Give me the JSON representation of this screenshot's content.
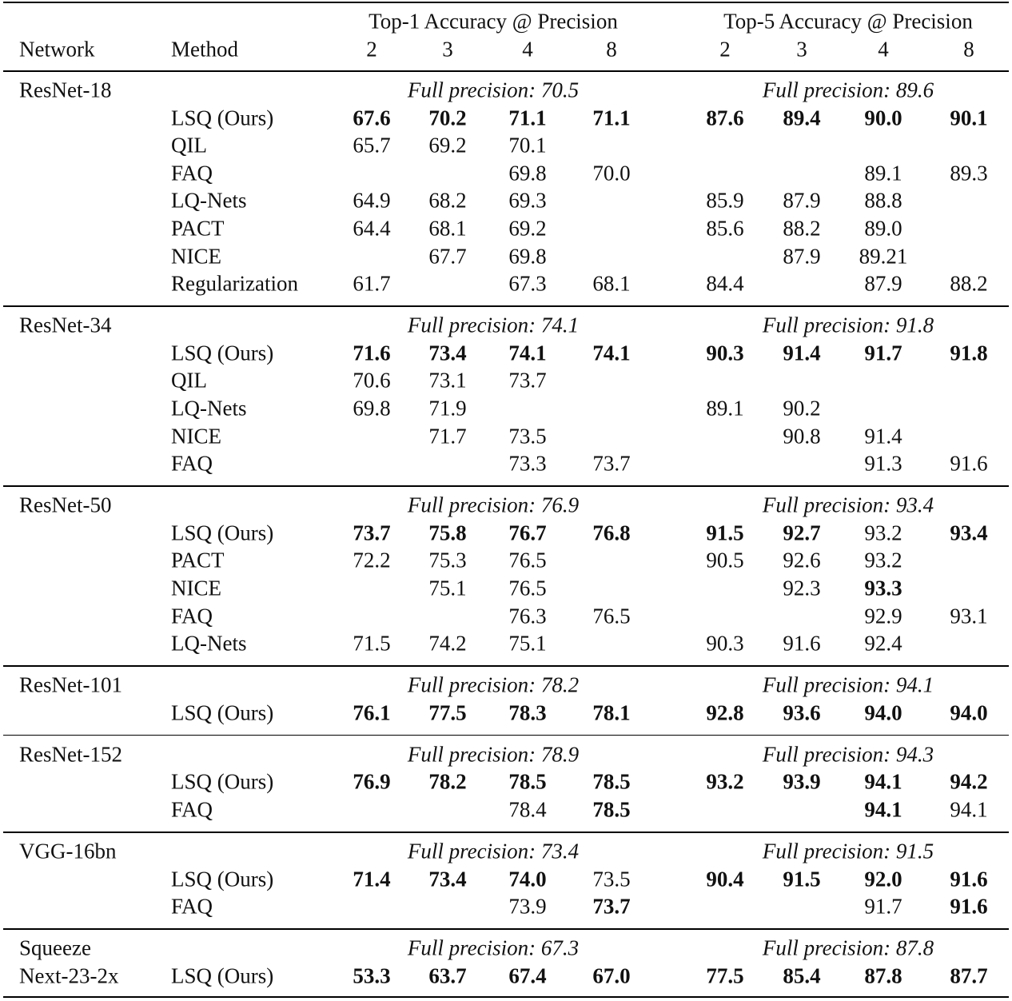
{
  "header": {
    "network": "Network",
    "method": "Method",
    "top1": "Top-1 Accuracy @ Precision",
    "top5": "Top-5 Accuracy @ Precision",
    "bits": [
      "2",
      "3",
      "4",
      "8",
      "2",
      "3",
      "4",
      "8"
    ]
  },
  "groups": [
    {
      "network": [
        "ResNet-18"
      ],
      "full_top1": "Full precision: 70.5",
      "full_top5": "Full precision: 89.6",
      "rows": [
        {
          "method": "LSQ (Ours)",
          "values": [
            "67.6",
            "70.2",
            "71.1",
            "71.1",
            "87.6",
            "89.4",
            "90.0",
            "90.1"
          ],
          "bold": [
            true,
            true,
            true,
            true,
            true,
            true,
            true,
            true
          ]
        },
        {
          "method": "QIL",
          "values": [
            "65.7",
            "69.2",
            "70.1",
            null,
            null,
            null,
            null,
            null
          ],
          "bold": [
            false,
            false,
            false,
            false,
            false,
            false,
            false,
            false
          ]
        },
        {
          "method": "FAQ",
          "values": [
            null,
            null,
            "69.8",
            "70.0",
            null,
            null,
            "89.1",
            "89.3"
          ],
          "bold": [
            false,
            false,
            false,
            false,
            false,
            false,
            false,
            false
          ]
        },
        {
          "method": "LQ-Nets",
          "values": [
            "64.9",
            "68.2",
            "69.3",
            null,
            "85.9",
            "87.9",
            "88.8",
            null
          ],
          "bold": [
            false,
            false,
            false,
            false,
            false,
            false,
            false,
            false
          ]
        },
        {
          "method": "PACT",
          "values": [
            "64.4",
            "68.1",
            "69.2",
            null,
            "85.6",
            "88.2",
            "89.0",
            null
          ],
          "bold": [
            false,
            false,
            false,
            false,
            false,
            false,
            false,
            false
          ]
        },
        {
          "method": "NICE",
          "values": [
            null,
            "67.7",
            "69.8",
            null,
            null,
            "87.9",
            "89.21",
            null
          ],
          "bold": [
            false,
            false,
            false,
            false,
            false,
            false,
            false,
            false
          ]
        },
        {
          "method": "Regularization",
          "values": [
            "61.7",
            null,
            "67.3",
            "68.1",
            "84.4",
            null,
            "87.9",
            "88.2"
          ],
          "bold": [
            false,
            false,
            false,
            false,
            false,
            false,
            false,
            false
          ]
        }
      ]
    },
    {
      "network": [
        "ResNet-34"
      ],
      "full_top1": "Full precision: 74.1",
      "full_top5": "Full precision: 91.8",
      "rows": [
        {
          "method": "LSQ (Ours)",
          "values": [
            "71.6",
            "73.4",
            "74.1",
            "74.1",
            "90.3",
            "91.4",
            "91.7",
            "91.8"
          ],
          "bold": [
            true,
            true,
            true,
            true,
            true,
            true,
            true,
            true
          ]
        },
        {
          "method": "QIL",
          "values": [
            "70.6",
            "73.1",
            "73.7",
            null,
            null,
            null,
            null,
            null
          ],
          "bold": [
            false,
            false,
            false,
            false,
            false,
            false,
            false,
            false
          ]
        },
        {
          "method": "LQ-Nets",
          "values": [
            "69.8",
            "71.9",
            null,
            null,
            "89.1",
            "90.2",
            null,
            null
          ],
          "bold": [
            false,
            false,
            false,
            false,
            false,
            false,
            false,
            false
          ]
        },
        {
          "method": "NICE",
          "values": [
            null,
            "71.7",
            "73.5",
            null,
            null,
            "90.8",
            "91.4",
            null
          ],
          "bold": [
            false,
            false,
            false,
            false,
            false,
            false,
            false,
            false
          ]
        },
        {
          "method": "FAQ",
          "values": [
            null,
            null,
            "73.3",
            "73.7",
            null,
            null,
            "91.3",
            "91.6"
          ],
          "bold": [
            false,
            false,
            false,
            false,
            false,
            false,
            false,
            false
          ]
        }
      ]
    },
    {
      "network": [
        "ResNet-50"
      ],
      "full_top1": "Full precision: 76.9",
      "full_top5": "Full precision: 93.4",
      "rows": [
        {
          "method": "LSQ (Ours)",
          "values": [
            "73.7",
            "75.8",
            "76.7",
            "76.8",
            "91.5",
            "92.7",
            "93.2",
            "93.4"
          ],
          "bold": [
            true,
            true,
            true,
            true,
            true,
            true,
            false,
            true
          ]
        },
        {
          "method": "PACT",
          "values": [
            "72.2",
            "75.3",
            "76.5",
            null,
            "90.5",
            "92.6",
            "93.2",
            null
          ],
          "bold": [
            false,
            false,
            false,
            false,
            false,
            false,
            false,
            false
          ]
        },
        {
          "method": "NICE",
          "values": [
            null,
            "75.1",
            "76.5",
            null,
            null,
            "92.3",
            "93.3",
            null
          ],
          "bold": [
            false,
            false,
            false,
            false,
            false,
            false,
            true,
            false
          ]
        },
        {
          "method": "FAQ",
          "values": [
            null,
            null,
            "76.3",
            "76.5",
            null,
            null,
            "92.9",
            "93.1"
          ],
          "bold": [
            false,
            false,
            false,
            false,
            false,
            false,
            false,
            false
          ]
        },
        {
          "method": "LQ-Nets",
          "values": [
            "71.5",
            "74.2",
            "75.1",
            null,
            "90.3",
            "91.6",
            "92.4",
            null
          ],
          "bold": [
            false,
            false,
            false,
            false,
            false,
            false,
            false,
            false
          ]
        }
      ]
    },
    {
      "network": [
        "ResNet-101"
      ],
      "full_top1": "Full precision: 78.2",
      "full_top5": "Full precision: 94.1",
      "rows": [
        {
          "method": "LSQ (Ours)",
          "values": [
            "76.1",
            "77.5",
            "78.3",
            "78.1",
            "92.8",
            "93.6",
            "94.0",
            "94.0"
          ],
          "bold": [
            true,
            true,
            true,
            true,
            true,
            true,
            true,
            true
          ]
        }
      ]
    },
    {
      "network": [
        "ResNet-152"
      ],
      "full_top1": "Full precision: 78.9",
      "full_top5": "Full precision: 94.3",
      "rows": [
        {
          "method": "LSQ (Ours)",
          "values": [
            "76.9",
            "78.2",
            "78.5",
            "78.5",
            "93.2",
            "93.9",
            "94.1",
            "94.2"
          ],
          "bold": [
            true,
            true,
            true,
            true,
            true,
            true,
            true,
            true
          ]
        },
        {
          "method": "FAQ",
          "values": [
            null,
            null,
            "78.4",
            "78.5",
            null,
            null,
            "94.1",
            "94.1"
          ],
          "bold": [
            false,
            false,
            false,
            true,
            false,
            false,
            true,
            false
          ]
        }
      ]
    },
    {
      "network": [
        "VGG-16bn"
      ],
      "full_top1": "Full precision: 73.4",
      "full_top5": "Full precision: 91.5",
      "rows": [
        {
          "method": "LSQ (Ours)",
          "values": [
            "71.4",
            "73.4",
            "74.0",
            "73.5",
            "90.4",
            "91.5",
            "92.0",
            "91.6"
          ],
          "bold": [
            true,
            true,
            true,
            false,
            true,
            true,
            true,
            true
          ]
        },
        {
          "method": "FAQ",
          "values": [
            null,
            null,
            "73.9",
            "73.7",
            null,
            null,
            "91.7",
            "91.6"
          ],
          "bold": [
            false,
            false,
            false,
            true,
            false,
            false,
            false,
            true
          ]
        }
      ]
    },
    {
      "network": [
        "Squeeze",
        "Next-23-2x"
      ],
      "full_top1": "Full precision: 67.3",
      "full_top5": "Full precision: 87.8",
      "rows": [
        {
          "method": "LSQ (Ours)",
          "values": [
            "53.3",
            "63.7",
            "67.4",
            "67.0",
            "77.5",
            "85.4",
            "87.8",
            "87.7"
          ],
          "bold": [
            true,
            true,
            true,
            true,
            true,
            true,
            true,
            true
          ]
        }
      ]
    }
  ]
}
